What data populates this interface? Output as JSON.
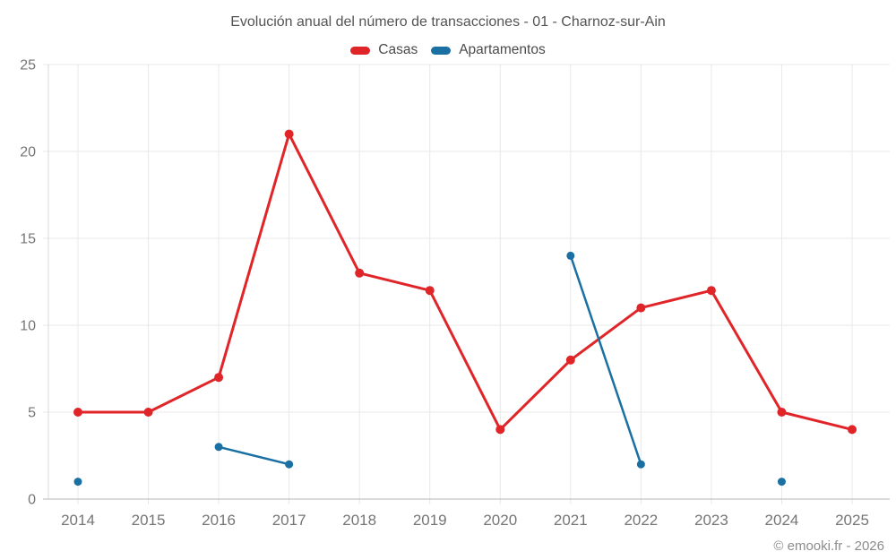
{
  "chart_data": {
    "type": "line",
    "title": "Evolución anual del número de transacciones - 01 - Charnoz-sur-Ain",
    "footer": "© emooki.fr - 2026",
    "categories": [
      "2014",
      "2015",
      "2016",
      "2017",
      "2018",
      "2019",
      "2020",
      "2021",
      "2022",
      "2023",
      "2024",
      "2025"
    ],
    "yticks": [
      0,
      5,
      10,
      15,
      20,
      25
    ],
    "ylim": [
      0,
      25
    ],
    "grid": true,
    "legend_position": "top-center",
    "series": [
      {
        "name": "Casas",
        "color": "#e02529",
        "line_width": 3,
        "marker_radius": 5,
        "values": [
          5,
          5,
          7,
          21,
          13,
          12,
          4,
          8,
          11,
          12,
          5,
          4
        ]
      },
      {
        "name": "Apartamentos",
        "color": "#1a6fa3",
        "line_width": 2.5,
        "marker_radius": 4.5,
        "values": [
          1,
          null,
          3,
          2,
          null,
          null,
          null,
          14,
          2,
          null,
          1,
          null
        ]
      }
    ],
    "colors": {
      "grid": "#e8e8e8",
      "axis_line": "#b5b5b5",
      "plot_border": "#dadada",
      "tick_label": "#757575",
      "title_text": "#545454",
      "legend_text": "#4a4a4a",
      "footer_text": "#8c8c8c"
    }
  }
}
